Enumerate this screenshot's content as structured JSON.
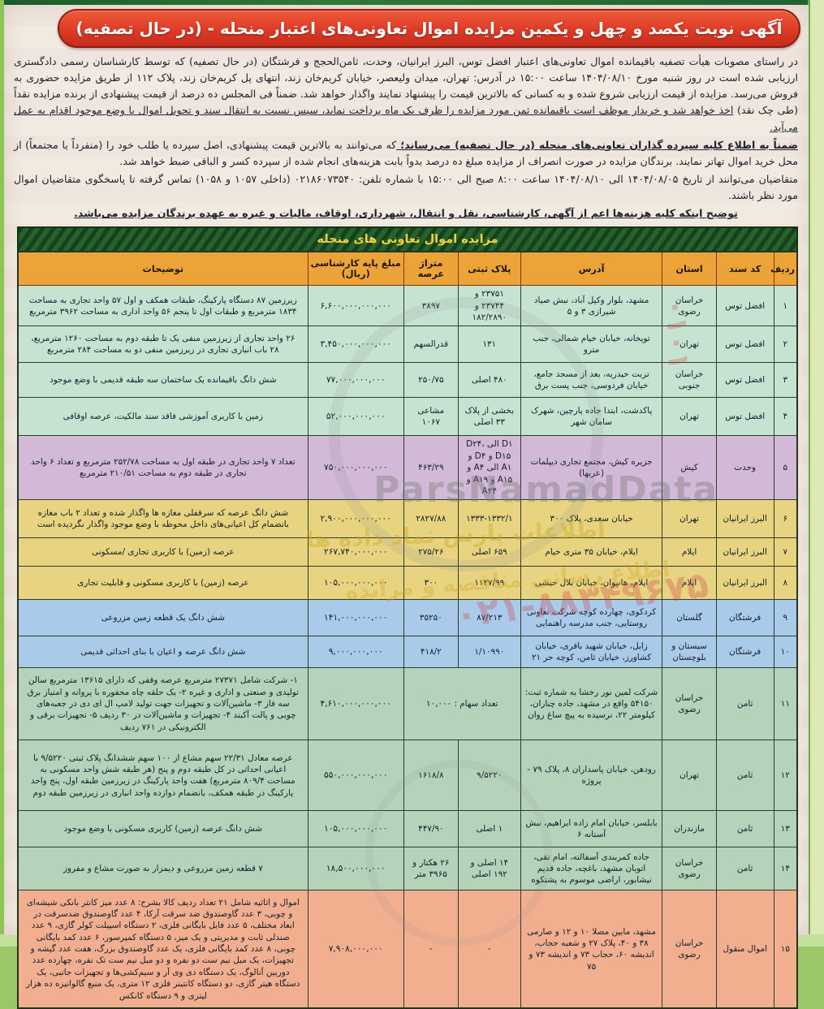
{
  "banner": {
    "title": "آگهی نوبت یکصد و چهل و یکمین مزایده اموال تعاونی‌های اعتبار منحله - (در حال تصفیه)"
  },
  "intro": {
    "paragraphs": [
      {
        "segments": [
          {
            "style": "n",
            "text": "در راستای مصوبات هیأت تصفیه باقیمانده اموال تعاونی‌های اعتبار افضل توس، البرز ایرانیان، وحدت، ثامن‌الحجج و فرشتگان (در حال تصفیه) که توسط کارشناسان رسمی دادگستری ارزیابی شده است در روز شنبه مورخ ۱۴۰۴/۰۸/۱۰ ساعت ۱۵:۰۰ در آدرس: تهران، میدان ولیعصر، خیابان کریم‌خان زند، انتهای پل کریم‌خان زند، پلاک ۱۱۲ از طریق مزایده حضوری به فروش می‌رسد. مزایده از قیمت ارزیابی شروع شده و به کسانی که بالاترین قیمت را پیشنهاد نمایند واگذار خواهد شد. ضمناً فی المجلس ده درصد از قیمت پیشنهادی از برنده مزایده نقداً (طی چک نقد)"
          },
          {
            "style": "u",
            "text": "اخذ خواهد شد و خریدار موظف است باقیمانده ثمن مورد مزایده را ظرف یک ماه پرداخت نماید، سپس نسبت به انتقال سند و تحویل اموال با وضع موجود اقدام به عمل می‌آید."
          }
        ]
      },
      {
        "segments": [
          {
            "style": "bu",
            "text": "ضمناً به اطلاع کلیه سپرده گذاران تعاونی‌های منحله (در حال تصفیه) می‌رساند؛"
          },
          {
            "style": "n",
            "text": "که می‌توانند به بالاترین قیمت پیشنهادی، اصل سپرده یا طلب خود را (منفرداً یا مجتمعاً) از محل خرید اموال تهاتر نمایند. برندگان مزایده در صورت انصراف از مزایده مبلغ ده درصد بدواً بابت هزینه‌های انجام شده از سپرده کسر و الباقی ضبط خواهد شد."
          }
        ]
      },
      {
        "segments": [
          {
            "style": "n",
            "text": "متقاضیان می‌توانند از تاریخ ۱۴۰۴/۰۸/۰۵ الی ۱۴۰۴/۰۸/۱۰ ساعت ۸:۰۰ صبح الی ۱۵:۰۰ با شماره تلفن: ۰۲۱۸۶۰۷۳۵۴۰ (داخلی ۱۰۵۷ و ۱۰۵۸) تماس گرفته تا پاسخگوی متقاضیان اموال مورد نظر باشند."
          }
        ]
      },
      {
        "align": "center",
        "segments": [
          {
            "style": "bu",
            "text": "توضیح اینکه کلیه هزینه‌ها اعم از آگهی، کارشناسی، نقل و انتقال، شهرداری، اوقاف، مالیات و غیره به عهده برندگان مزایده می‌باشد."
          }
        ]
      }
    ]
  },
  "table": {
    "title": "مزایده اموال تعاونی های منحله",
    "columns": [
      {
        "key": "num",
        "label": "ردیف"
      },
      {
        "key": "code",
        "label": "کد سند"
      },
      {
        "key": "province",
        "label": "استان"
      },
      {
        "key": "address",
        "label": "آدرس"
      },
      {
        "key": "plate",
        "label": "پلاک ثبتی"
      },
      {
        "key": "area",
        "label": "متراژ عرصه"
      },
      {
        "key": "price",
        "label": "مبلغ پایه کارشناسی (ریال)"
      },
      {
        "key": "desc",
        "label": "توضیحات"
      }
    ],
    "rows": [
      {
        "id": 1,
        "band": "g1",
        "num": "۱",
        "code": "افضل توس",
        "province": "خراسان رضوی",
        "address": "مشهد، بلوار وکیل آباد، نبش صیاد شیرازی ۳ و ۵",
        "plate": "۲۳۷۵۱ و ۲۳۷۴۴ و ۱۸۲/۲۸۹۰",
        "area": "۳۸۹۷",
        "price": "۶,۶۰۰,۰۰۰,۰۰۰,۰۰۰",
        "desc": "زیرزمین ۸۷ دستگاه پارکینگ، طبقات همکف و اول ۵۷ واحد تجاری به مساحت ۱۸۳۴ مترمربع و طبقات اول تا پنجم ۵۶ واحد اداری به مساحت ۳۹۶۲ مترمربع"
      },
      {
        "id": 2,
        "band": "g1",
        "num": "۲",
        "code": "افضل توس",
        "province": "تهران",
        "address": "توپخانه، خیابان خیام شمالی، جنب مترو",
        "plate": "۱۳۱",
        "area": "قدرالسهم",
        "price": "۳,۴۵۰,۰۰۰,۰۰۰,۰۰۰",
        "desc": "۲۶ واحد تجاری از زیرزمین منفی یک تا طبقه دوم به مساحت ۱۲۶۰ مترمربع، ۲۸ باب انباری تجاری در زیرزمین منفی دو به مساحت ۲۸۴ مترمربع"
      },
      {
        "id": 3,
        "band": "g1",
        "num": "۳",
        "code": "افضل توس",
        "province": "خراسان جنوبی",
        "address": "تربت حیدریه، بعد از مسجد جامع، خیابان فردوسی، جنب پست برق",
        "plate": "۴۸۰ اصلی",
        "area": "۲۵۰/۷۵",
        "price": "۷۷,۰۰۰,۰۰۰,۰۰۰",
        "desc": "شش دانگ باقیمانده یک ساختمان سه طبقه قدیمی با وضع موجود"
      },
      {
        "id": 4,
        "band": "g1",
        "num": "۴",
        "code": "افضل توس",
        "province": "تهران",
        "address": "پاکدشت، ابتدا جاده پارچین، شهرک سامان شهر",
        "plate": "بخشی از پلاک ۳۳ اصلی",
        "area": "مشاعی ۱۰۶۷",
        "price": "۵۲,۰۰۰,۰۰۰,۰۰۰",
        "desc": "زمین با کاربری آموزشی فاقد سند مالکیت، عرصه اوقافی"
      },
      {
        "id": 5,
        "band": "purple",
        "num": "۵",
        "code": "وحدت",
        "province": "کیش",
        "address": "جزیره کیش، مجتمع تجاری دیپلمات (عربها)",
        "plate": "D۱ الی D۲۴، D۱۵ و D۴ و A۱ الی A۴ و A۱۵ و A۱۹ و A۲۴",
        "area": "۴۶۳/۲۹",
        "price": "۷۵۰,۰۰۰,۰۰۰,۰۰۰",
        "desc": "تعداد ۷ واحد تجاری در طبقه اول به مساحت ۲۵۲/۷۸ مترمربع و تعداد ۶ واحد تجاری در طبقه دوم به مساحت ۲۱۰/۵۱ مترمربع"
      },
      {
        "id": 6,
        "band": "yellow",
        "num": "۶",
        "code": "البرز ایرانیان",
        "province": "تهران",
        "address": "خیابان سعدی، پلاک ۳۰۰",
        "plate": "۱۳۳۳-۱۳۳۲/۱",
        "area": "۲۸۲۷/۸۸",
        "price": "۲,۹۰۰,۰۰۰,۰۰۰,۰۰۰",
        "desc": "شش دانگ عرصه که سرقفلی مغازه ها واگذار شده و تعداد ۲ باب مغازه بانضمام کل اعیانی‌های داخل محوطه با وضع موجود واگذار نگردیده است"
      },
      {
        "id": 7,
        "band": "yellow",
        "num": "۷",
        "code": "البرز ایرانیان",
        "province": "ایلام",
        "address": "ایلام، خیابان ۳۵ متری خیام",
        "plate": "۶۵۹ اصلی",
        "area": "۲۷۵/۲۶",
        "price": "۲۶۷,۷۴۰,۰۰۰,۰۰۰",
        "desc": "عرصه (زمین) با کاربری تجاری /مسکونی"
      },
      {
        "id": 8,
        "band": "yellow",
        "num": "۸",
        "code": "البرز ایرانیان",
        "province": "ایلام",
        "address": "ایلام، هانیوان، خیابان بلال حبشی",
        "plate": "۱۱۲۷/۹۹",
        "area": "۳۰۰",
        "price": "۱۰۵,۰۰۰,۰۰۰,۰۰۰",
        "desc": "عرصه (زمین) با کاربری مسکونی و قابلیت تجاری"
      },
      {
        "id": 9,
        "band": "blue",
        "num": "۹",
        "code": "فرشتگان",
        "province": "گلستان",
        "address": "کردکوی، چهارده کوچه شرکت تعاونی روستایی، جنب مدرسه راهنمایی",
        "plate": "۸۷/۲۱۳",
        "area": "۳۵۲۵۰",
        "price": "۱۴۱,۰۰۰,۰۰۰,۰۰۰",
        "desc": "شش دانگ یک قطعه زمین مزروعی"
      },
      {
        "id": 10,
        "band": "blue",
        "num": "۱۰",
        "code": "فرشتگان",
        "province": "سیستان و بلوچستان",
        "address": "زابل، خیابان شهید باقری، خیابان کشاورز، خیابان ثامن، کوچه حر ۲۱",
        "plate": "۱/۱۰۹۹۰",
        "area": "۴۱۸/۲",
        "price": "۹,۰۰۰,۰۰۰,۰۰۰",
        "desc": "شش دانگ عرصه و اعیان با بنای احداثی قدیمی"
      },
      {
        "id": 11,
        "band": "g2",
        "num": "۱۱",
        "code": "ثامن",
        "province": "خراسان رضوی",
        "address": "شرکت لمین نور رخشا به شماره ثبت: ۵۴۱۵۰ واقع در مشهد، جاده چناران، کیلومتر ۲۲، نرسیده به پیچ ساغ روان",
        "plate": "تعداد سهام : ۱۰,۰۰۰",
        "area": "",
        "merge_plate_area": true,
        "price": "۴,۶۱۰,۰۰۰,۰۰۰,۰۰۰",
        "desc": "۱- شرکت شامل ۲۷۳۷۱ مترمربع عرصه وقفی که دارای ۱۳۶۱۵ مترمربع سالن تولیدی و صنعتی و اداری و غیره ۲- یک حلقه چاه محفوره با پروانه و امتیاز برق سه فاز ۳- ماشین‌آلات و تجهیزات جهت تولید لامپ ال ای دی در جعبه‌های چوبی و پالت آکبند ۴- تجهیزات و ماشین‌آلات در ۳۰ ردیف ۵- تجهیزات برقی و الکترونیکی در ۷۶۱ ردیف"
      },
      {
        "id": 12,
        "band": "g2",
        "num": "۱۲",
        "code": "ثامن",
        "province": "تهران",
        "address": "رودهن، خیابان پاسداران ۸، پلاک ۷۹ - پروژه",
        "plate": "۹/۵۲۲۰",
        "area": "۱۶۱۸/۸",
        "price": "۵۵۰,۰۰۰,۰۰۰,۰۰۰",
        "desc": "عرصه معادل ۲۲/۳۱ سهم مشاع از ۱۰۰ سهم ششدانگ پلاک ثبتی ۹/۵۲۲۰ با اعیانی احداثی در کل طبقه دوم و پنج (هر طبقه شش واحد مسکونی به مساحت ۸۰۹/۴ مترمربع) هفت واحد پارکینگ در زیرزمین طبقه اول، پنج واحد پارکینگ در طبقه همکف، بانضمام دوازده واحد انباری در زیرزمین طبقه دوم"
      },
      {
        "id": 13,
        "band": "g2",
        "num": "۱۳",
        "code": "ثامن",
        "province": "مازندران",
        "address": "بابلسر، خیابان امام زاده ابراهیم، نبش آستانه ۶",
        "plate": "۱ اصلی",
        "area": "۴۴۷/۹۰",
        "price": "۱۰۵,۰۰۰,۰۰۰,۰۰۰",
        "desc": "شش دانگ عرصه (زمین) کاربری مسکونی با وضع موجود"
      },
      {
        "id": 14,
        "band": "g2",
        "num": "۱۴",
        "code": "ثامن",
        "province": "خراسان رضوی",
        "address": "جاده کمربندی آسفالته، امام تقی، اتوبان مشهد، باغچه، جاده قدیم نیشابور، اراضی موسوم به پشتکوه",
        "plate": "۱۴ اصلی و ۱۹۲ اصلی",
        "area": "۲۶ هکتار و ۳۹۶۵ متر",
        "price": "۱۸,۵۰۰,۰۰۰,۰۰۰",
        "desc": "۷ قطعه زمین مزروعی و دیمزار به صورت مشاع و مفروز"
      },
      {
        "id": 15,
        "band": "salmon",
        "num": "۱۵",
        "code": "اموال منقول",
        "province": "خراسان رضوی",
        "address": "مشهد، مابین مصلا ۱۰ و ۱۲ و صارمی ۳۸ و ۴۰، پلاک ۲۷ و شعبه حجاب، اندیشه ۶۰، حجاب ۷۳ و اندیشه ۷۳ و ۷۵",
        "plate": "-",
        "area": "-",
        "price": "۷,۹۰۸,۰۰۰,۰۰۰",
        "desc": "اموال و اثاثیه شامل ۲۱ تعداد ردیف کالا بشرح: ۸ عدد میز کانتر بانکی شیشه‌ای و چوبی، ۳ عدد گاوصندوق ضد سرقت آرکا، ۴ عدد گاوصندوق ضدسرقت در ابعاد مختلف، ۵ عدد فایل بایگانی فلزی، ۲ دستگاه اسپیلت کولر گازی، ۹ عدد صندلی ثابت و مدیریتی و یک میز، ۵ دستگاه کمپرسور، ۶ عدد کمد بایگانی چوبی، ۸ عدد کمد بایگانی فلزی، یک عدد گاوصندوق بزرگ، هفت عدد گیشه و تجهیزات، یک مبل نیم ست دو نفره و دو مبل نیم ست تک نفره، چهارده عدد دوربین آنالوگ، یک دستگاه دی وی آر و سیم‌کشی‌ها و تجهیزات جانبی، یک دستگاه هیتر گازی، دو دستگاه کانتینر فلزی ۱۲ متری، یک منبع گالوانیزه ده هزار لیتری و ۹ دستگاه کانکس"
      }
    ]
  },
  "watermark": {
    "brand_latin": "ParsNamadData",
    "brand_fa1": "اطلاعات پارس نماد داده ها",
    "brand_fa2": "اطلاع رسانی مناقصه و مزایده",
    "phone": "۰۲۱-۸۸۳۴۹۶۷۵",
    "digits": "۰۱۰۱"
  },
  "colors": {
    "banner_red": "#dd3b26",
    "header_orange": "#eca438",
    "title_green": "#1d5c28",
    "title_text_yellow": "#f2d23c",
    "band_green_1": "#c6e3d2",
    "band_purple": "#d2b9d8",
    "band_yellow": "#e7d380",
    "band_blue": "#a9cae8",
    "band_green_2": "#b5d3ba",
    "band_salmon": "#f2af90",
    "page_frame_green": "#9cc768"
  }
}
